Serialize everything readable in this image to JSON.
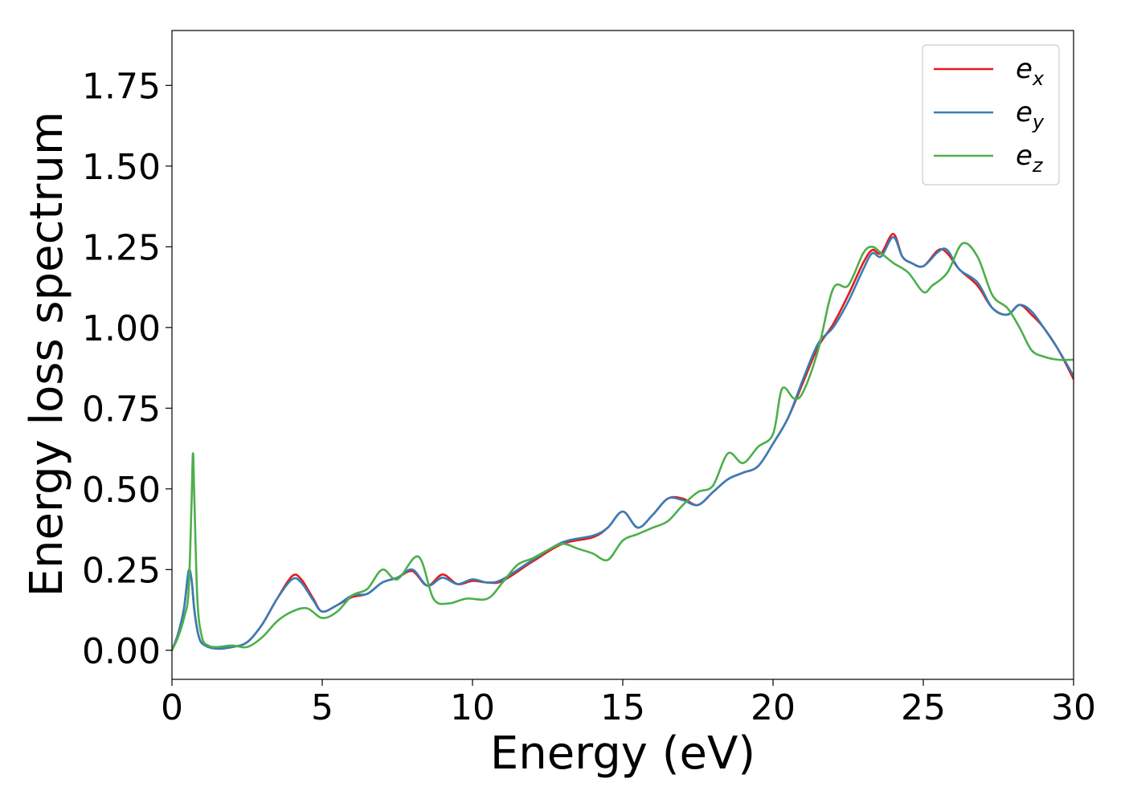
{
  "chart_data": {
    "type": "line",
    "xlabel": "Energy (eV)",
    "ylabel": "Energy loss spectrum",
    "xlim": [
      0,
      30
    ],
    "ylim": [
      -0.09,
      1.92
    ],
    "xticks": [
      0,
      5,
      10,
      15,
      20,
      25,
      30
    ],
    "xtick_labels": [
      "0",
      "5",
      "10",
      "15",
      "20",
      "25",
      "30"
    ],
    "yticks": [
      0.0,
      0.25,
      0.5,
      0.75,
      1.0,
      1.25,
      1.5,
      1.75
    ],
    "ytick_labels": [
      "0.00",
      "0.25",
      "0.50",
      "0.75",
      "1.00",
      "1.25",
      "1.50",
      "1.75"
    ],
    "grid": false,
    "legend_position": "top-right",
    "series": [
      {
        "name": "e_x",
        "label_base": "e",
        "label_sub": "x",
        "color": "#e41a1c",
        "x": [
          0,
          0.2,
          0.4,
          0.55,
          0.65,
          0.75,
          0.9,
          1.1,
          1.5,
          2,
          2.5,
          3,
          3.5,
          4,
          4.3,
          4.7,
          5,
          5.5,
          6,
          6.5,
          7,
          7.5,
          8,
          8.5,
          9,
          9.5,
          10,
          10.5,
          11,
          12,
          13,
          14,
          14.5,
          15,
          15.5,
          16,
          16.5,
          17,
          17.5,
          18,
          18.5,
          19,
          19.5,
          20,
          20.5,
          21,
          21.5,
          22,
          22.5,
          23,
          23.3,
          23.6,
          24,
          24.3,
          24.6,
          25,
          25.5,
          25.8,
          26.2,
          26.8,
          27.3,
          27.8,
          28.2,
          28.6,
          29,
          29.5,
          30
        ],
        "y": [
          0.0,
          0.05,
          0.13,
          0.24,
          0.22,
          0.12,
          0.04,
          0.015,
          0.005,
          0.01,
          0.025,
          0.08,
          0.16,
          0.23,
          0.22,
          0.16,
          0.12,
          0.14,
          0.165,
          0.175,
          0.21,
          0.225,
          0.245,
          0.2,
          0.235,
          0.205,
          0.215,
          0.21,
          0.215,
          0.275,
          0.33,
          0.35,
          0.38,
          0.43,
          0.38,
          0.42,
          0.47,
          0.47,
          0.45,
          0.49,
          0.53,
          0.55,
          0.57,
          0.64,
          0.72,
          0.83,
          0.94,
          1.01,
          1.1,
          1.2,
          1.24,
          1.23,
          1.29,
          1.22,
          1.2,
          1.19,
          1.24,
          1.23,
          1.18,
          1.13,
          1.06,
          1.04,
          1.07,
          1.04,
          1.0,
          0.93,
          0.84
        ]
      },
      {
        "name": "e_y",
        "label_base": "e",
        "label_sub": "y",
        "color": "#377eb8",
        "x": [
          0,
          0.2,
          0.4,
          0.55,
          0.65,
          0.75,
          0.9,
          1.1,
          1.5,
          2,
          2.5,
          3,
          3.5,
          4,
          4.3,
          4.7,
          5,
          5.5,
          6,
          6.5,
          7,
          7.5,
          8,
          8.5,
          9,
          9.5,
          10,
          10.5,
          11,
          12,
          13,
          14,
          14.5,
          15,
          15.5,
          16,
          16.5,
          17,
          17.5,
          18,
          18.5,
          19,
          19.5,
          20,
          20.5,
          21,
          21.5,
          22,
          22.5,
          23,
          23.3,
          23.6,
          24,
          24.3,
          24.6,
          25,
          25.5,
          25.8,
          26.2,
          26.8,
          27.3,
          27.8,
          28.2,
          28.6,
          29,
          29.5,
          30
        ],
        "y": [
          0.0,
          0.05,
          0.13,
          0.245,
          0.22,
          0.12,
          0.04,
          0.015,
          0.005,
          0.01,
          0.025,
          0.08,
          0.16,
          0.22,
          0.21,
          0.155,
          0.12,
          0.14,
          0.17,
          0.175,
          0.21,
          0.225,
          0.25,
          0.2,
          0.225,
          0.205,
          0.22,
          0.21,
          0.22,
          0.28,
          0.335,
          0.355,
          0.38,
          0.43,
          0.38,
          0.42,
          0.47,
          0.465,
          0.45,
          0.49,
          0.53,
          0.55,
          0.57,
          0.64,
          0.72,
          0.84,
          0.95,
          1.0,
          1.08,
          1.18,
          1.23,
          1.22,
          1.28,
          1.22,
          1.2,
          1.19,
          1.235,
          1.24,
          1.18,
          1.14,
          1.06,
          1.04,
          1.07,
          1.05,
          1.0,
          0.93,
          0.85
        ]
      },
      {
        "name": "e_z",
        "label_base": "e",
        "label_sub": "z",
        "color": "#4daf4a",
        "x": [
          0,
          0.2,
          0.4,
          0.55,
          0.65,
          0.7,
          0.75,
          0.85,
          1.0,
          1.2,
          1.5,
          2,
          2.5,
          3,
          3.5,
          4,
          4.5,
          5,
          5.5,
          6,
          6.5,
          7,
          7.5,
          8.2,
          8.7,
          9.2,
          9.8,
          10.5,
          11,
          11.5,
          12,
          12.5,
          13,
          13.5,
          14,
          14.5,
          15,
          15.5,
          16,
          16.5,
          17,
          17.5,
          18,
          18.5,
          19,
          19.5,
          20,
          20.3,
          20.7,
          21,
          21.5,
          22,
          22.5,
          23,
          23.3,
          23.6,
          24,
          24.5,
          25,
          25.3,
          25.8,
          26.3,
          26.8,
          27.3,
          27.8,
          28.2,
          28.6,
          29,
          29.5,
          30
        ],
        "y": [
          0.0,
          0.04,
          0.1,
          0.18,
          0.45,
          0.61,
          0.45,
          0.15,
          0.04,
          0.015,
          0.01,
          0.015,
          0.01,
          0.04,
          0.09,
          0.12,
          0.13,
          0.1,
          0.12,
          0.17,
          0.19,
          0.25,
          0.22,
          0.29,
          0.16,
          0.145,
          0.16,
          0.16,
          0.21,
          0.265,
          0.285,
          0.31,
          0.33,
          0.315,
          0.3,
          0.28,
          0.34,
          0.36,
          0.38,
          0.4,
          0.45,
          0.49,
          0.51,
          0.61,
          0.58,
          0.63,
          0.67,
          0.81,
          0.78,
          0.8,
          0.93,
          1.12,
          1.13,
          1.23,
          1.25,
          1.23,
          1.2,
          1.17,
          1.11,
          1.13,
          1.17,
          1.26,
          1.22,
          1.1,
          1.06,
          1.0,
          0.93,
          0.91,
          0.9,
          0.9
        ]
      }
    ]
  }
}
